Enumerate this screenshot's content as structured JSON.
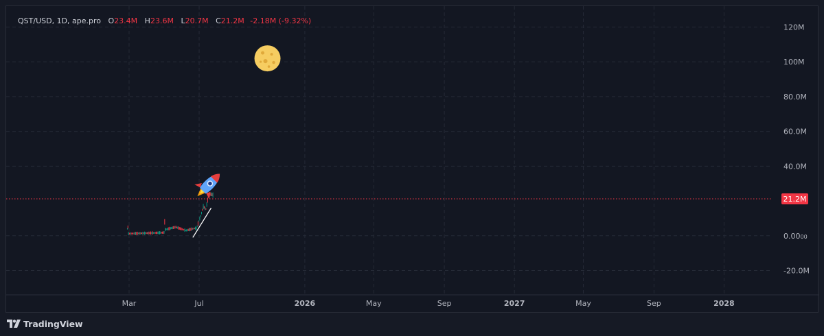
{
  "legend": {
    "symbol": "QST/USD, 1D, ape.pro",
    "open_label": "O",
    "open": "23.4M",
    "high_label": "H",
    "high": "23.6M",
    "low_label": "L",
    "low": "20.7M",
    "close_label": "C",
    "close": "21.2M",
    "change": "-2.18M (-9.32%)"
  },
  "brand": {
    "name": "TradingView"
  },
  "colors": {
    "background": "#131722",
    "grid": "#252a36",
    "text": "#b2b5be",
    "up": "#089981",
    "down": "#f23645",
    "price_line": "#f23645",
    "price_badge": "#f23645"
  },
  "chart_data": {
    "type": "candlestick",
    "y_axis": {
      "ticks": [
        "120M",
        "100M",
        "80.0M",
        "60.0M",
        "40.0M",
        "-20.0M"
      ],
      "tick_values": [
        120,
        100,
        80,
        60,
        40,
        -20
      ],
      "zero_label": "0.00",
      "zero_suffix": "00",
      "zero_value": 0,
      "range": [
        -34,
        132
      ],
      "unit": "M"
    },
    "x_axis": {
      "ticks": [
        "Mar",
        "Jul",
        "2026",
        "May",
        "Sep",
        "2027",
        "May",
        "Sep",
        "2028"
      ],
      "bold": [
        false,
        false,
        true,
        false,
        false,
        true,
        false,
        false,
        true
      ],
      "tick_days": [
        59,
        181,
        365,
        485,
        608,
        730,
        850,
        973,
        1095
      ],
      "day_zero": "2025-01-01",
      "range_days": [
        -155,
        1177
      ]
    },
    "last_price": {
      "value": 21.2,
      "label": "21.2M"
    },
    "price_segments": [
      {
        "from_day": 56,
        "to_day": 58,
        "values": [
          4,
          5,
          1.5
        ]
      },
      {
        "from_day": 58,
        "to_day": 120,
        "values": [
          1.2,
          1.8
        ]
      },
      {
        "from_day": 120,
        "to_day": 122,
        "values": [
          2,
          8,
          4
        ]
      },
      {
        "from_day": 122,
        "to_day": 176,
        "values": [
          3.5,
          5,
          3,
          4.5
        ]
      },
      {
        "from_day": 176,
        "to_day": 205,
        "values": [
          4,
          8,
          12,
          17,
          15,
          22,
          24,
          23.4
        ]
      }
    ],
    "trendline": {
      "from_day": 170,
      "from_value": -1,
      "to_day": 202,
      "to_value": 16
    },
    "annotations": [
      {
        "icon": "moon-icon",
        "day": 300,
        "value": 102
      },
      {
        "icon": "rocket-icon",
        "day": 200,
        "value": 30
      }
    ]
  }
}
